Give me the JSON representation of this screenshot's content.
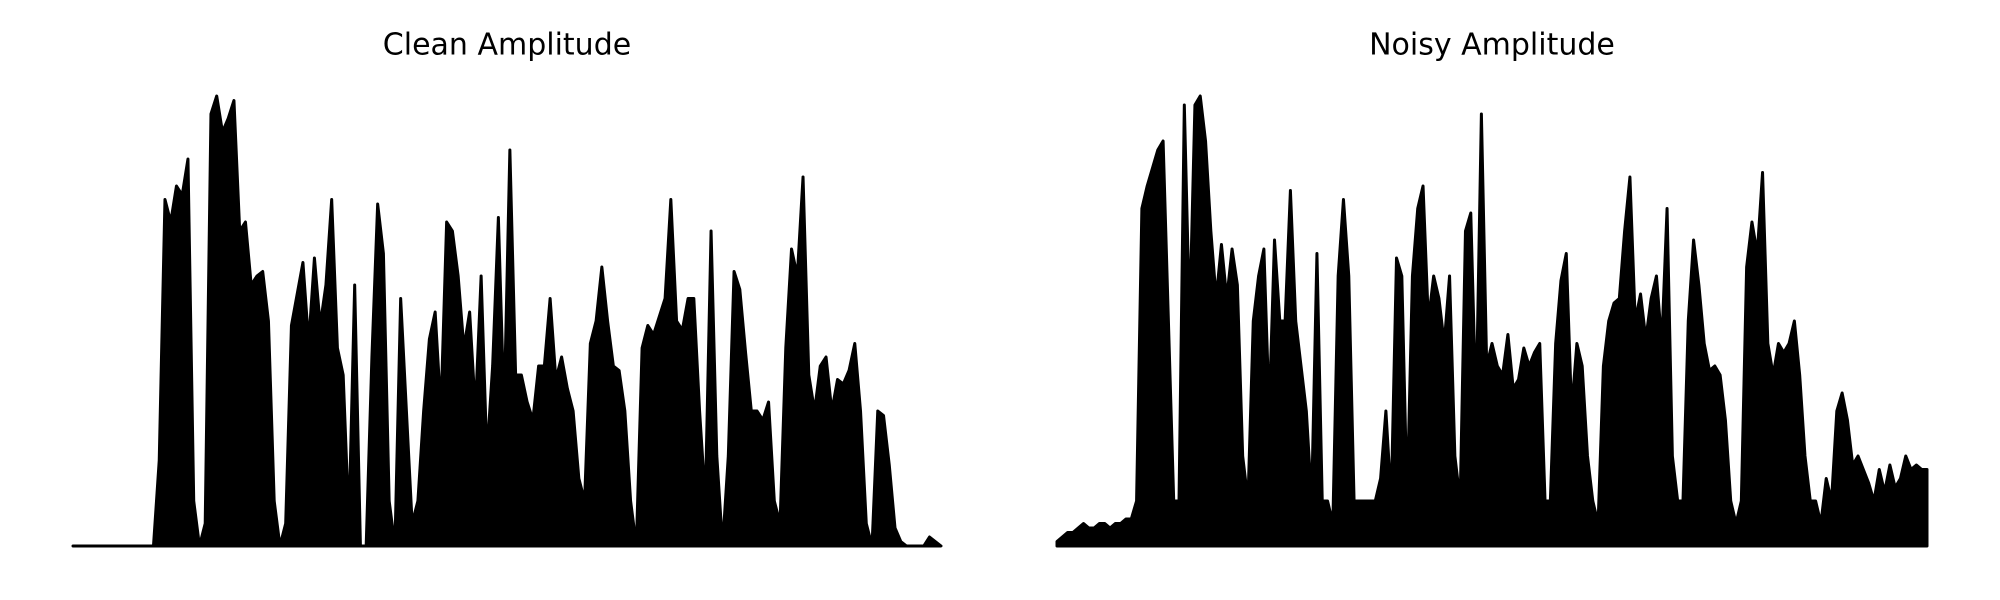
{
  "chart_data": [
    {
      "type": "area",
      "title": "Clean Amplitude",
      "ylim": [
        0,
        1
      ],
      "color": "#000000",
      "values": [
        0,
        0,
        0,
        0,
        0,
        0,
        0,
        0,
        0,
        0,
        0,
        0,
        0,
        0,
        0,
        0.19,
        0.77,
        0.72,
        0.8,
        0.78,
        0.86,
        0.1,
        0,
        0.05,
        0.96,
        1.0,
        0.92,
        0.95,
        0.99,
        0.7,
        0.72,
        0.58,
        0.6,
        0.61,
        0.5,
        0.1,
        0,
        0.05,
        0.49,
        0.56,
        0.63,
        0.45,
        0.64,
        0.49,
        0.58,
        0.77,
        0.44,
        0.38,
        0.05,
        0.58,
        0,
        0,
        0.42,
        0.76,
        0.65,
        0.1,
        0,
        0.55,
        0.3,
        0.05,
        0.1,
        0.3,
        0.46,
        0.52,
        0.3,
        0.72,
        0.7,
        0.6,
        0.44,
        0.52,
        0.3,
        0.6,
        0.2,
        0.4,
        0.73,
        0.3,
        0.88,
        0.38,
        0.38,
        0.32,
        0.28,
        0.4,
        0.4,
        0.55,
        0.37,
        0.42,
        0.35,
        0.3,
        0.15,
        0.1,
        0.45,
        0.5,
        0.62,
        0.5,
        0.4,
        0.39,
        0.3,
        0.1,
        0,
        0.44,
        0.49,
        0.47,
        0.51,
        0.55,
        0.77,
        0.5,
        0.48,
        0.55,
        0.55,
        0.3,
        0.1,
        0.7,
        0.2,
        0,
        0.2,
        0.61,
        0.57,
        0.43,
        0.3,
        0.3,
        0.28,
        0.32,
        0.1,
        0.05,
        0.44,
        0.66,
        0.6,
        0.82,
        0.38,
        0.3,
        0.4,
        0.42,
        0.3,
        0.37,
        0.36,
        0.39,
        0.45,
        0.3,
        0.05,
        0,
        0.3,
        0.29,
        0.18,
        0.04,
        0.01,
        0,
        0,
        0,
        0,
        0.02,
        0.01,
        0
      ]
    },
    {
      "type": "area",
      "title": "Noisy Amplitude",
      "ylim": [
        0,
        1
      ],
      "color": "#000000",
      "values": [
        0.01,
        0.02,
        0.03,
        0.03,
        0.04,
        0.05,
        0.04,
        0.04,
        0.05,
        0.05,
        0.04,
        0.05,
        0.05,
        0.06,
        0.06,
        0.1,
        0.75,
        0.8,
        0.84,
        0.88,
        0.9,
        0.5,
        0.1,
        0.1,
        0.98,
        0.5,
        0.98,
        1.0,
        0.9,
        0.7,
        0.55,
        0.67,
        0.55,
        0.66,
        0.58,
        0.2,
        0.1,
        0.5,
        0.6,
        0.66,
        0.3,
        0.68,
        0.5,
        0.5,
        0.79,
        0.5,
        0.4,
        0.3,
        0.1,
        0.65,
        0.1,
        0.1,
        0.05,
        0.6,
        0.77,
        0.6,
        0.1,
        0.1,
        0.1,
        0.1,
        0.1,
        0.15,
        0.3,
        0.1,
        0.64,
        0.6,
        0.1,
        0.6,
        0.75,
        0.8,
        0.5,
        0.6,
        0.55,
        0.45,
        0.6,
        0.2,
        0.1,
        0.7,
        0.74,
        0.3,
        0.96,
        0.4,
        0.45,
        0.4,
        0.38,
        0.47,
        0.35,
        0.37,
        0.44,
        0.4,
        0.43,
        0.45,
        0.1,
        0.1,
        0.45,
        0.59,
        0.65,
        0.3,
        0.45,
        0.4,
        0.2,
        0.1,
        0.05,
        0.4,
        0.5,
        0.54,
        0.55,
        0.7,
        0.82,
        0.5,
        0.56,
        0.46,
        0.55,
        0.6,
        0.45,
        0.75,
        0.2,
        0.1,
        0.1,
        0.5,
        0.68,
        0.58,
        0.45,
        0.39,
        0.4,
        0.38,
        0.28,
        0.1,
        0.05,
        0.1,
        0.62,
        0.72,
        0.65,
        0.83,
        0.45,
        0.38,
        0.45,
        0.43,
        0.45,
        0.5,
        0.38,
        0.2,
        0.1,
        0.1,
        0.05,
        0.15,
        0.1,
        0.3,
        0.34,
        0.28,
        0.18,
        0.2,
        0.17,
        0.14,
        0.1,
        0.17,
        0.12,
        0.18,
        0.13,
        0.15,
        0.2,
        0.17,
        0.18,
        0.17,
        0.17
      ]
    }
  ]
}
